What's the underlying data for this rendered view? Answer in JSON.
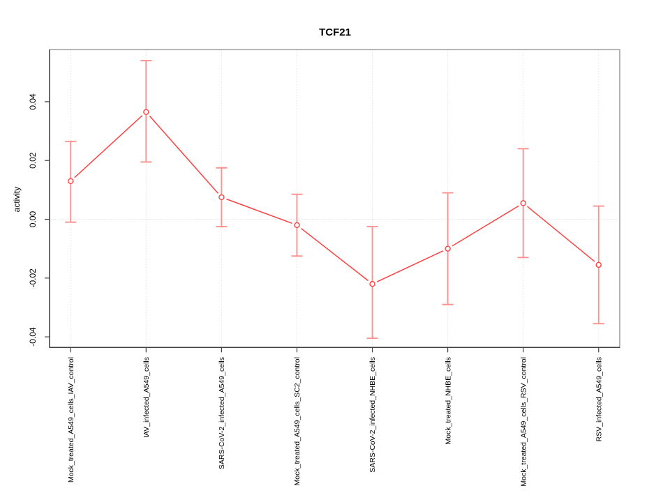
{
  "chart_data": {
    "type": "line",
    "title": "TCF21",
    "xlabel": "",
    "ylabel": "activity",
    "categories": [
      "Mock_treated_A549_cells_IAV_control",
      "IAV_infected_A549_cells",
      "SARS-CoV-2_infected_A549_cells",
      "Mock_treated_A549_cells_SC2_control",
      "SARS-CoV-2_infected_NHBE_cells",
      "Mock_treated_NHBE_cells",
      "Mock_treated_A549_cells_RSV_control",
      "RSV_infected_A549_cells"
    ],
    "series": [
      {
        "name": "TCF21 activity",
        "values": [
          0.013,
          0.0365,
          0.0075,
          -0.002,
          -0.022,
          -0.01,
          0.0055,
          -0.0155
        ],
        "error_high": [
          0.0265,
          0.054,
          0.0175,
          0.0085,
          -0.0025,
          0.009,
          0.024,
          0.0045
        ],
        "error_low": [
          -0.001,
          0.0195,
          -0.0025,
          -0.0125,
          -0.0405,
          -0.029,
          -0.013,
          -0.0355
        ]
      }
    ],
    "yticks": [
      -0.04,
      -0.02,
      0,
      0.02,
      0.04
    ],
    "ytick_labels": [
      "-0.04",
      "-0.02",
      "0.00",
      "0.02",
      "0.04"
    ],
    "ylim": [
      -0.0436,
      0.0577
    ],
    "legend": "none",
    "grid": {
      "vertical_at_each_category": true,
      "horizontal_at_zero": true,
      "style": "dotted"
    },
    "point_style": "open-circle",
    "colors": {
      "line": "#ff4040",
      "error_bar": "#ff9090",
      "grid": "#dbdbdb",
      "box": "#9a9a9a",
      "axis": "#404040",
      "text": "#000000",
      "background": "#ffffff"
    }
  }
}
